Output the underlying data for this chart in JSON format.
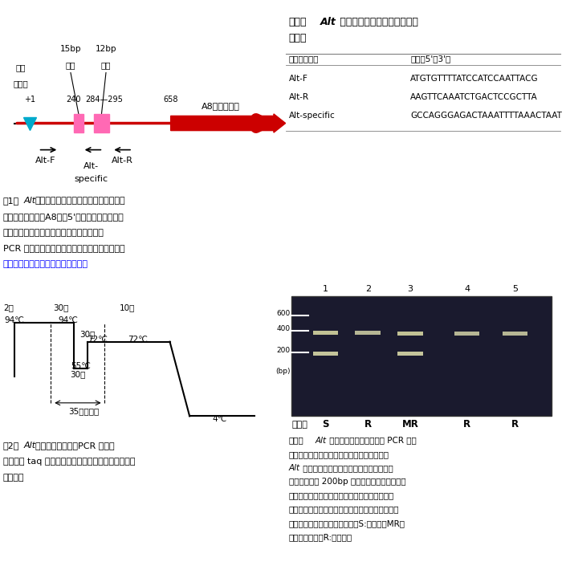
{
  "fig1_title": "図1　Alt座乗領域中に存在する病害抵抗性遺伝\n子様の翻訳領域（A8）の5'側非翻訳領域におい\nて、特異的に認められる挿入・欠失多型。\nPCR で多型を検出するためのプライマーを設計\nした位置を矢印で模式的に示した。",
  "table1_title": "表１　Alt を検出するためのプライマー\nセット",
  "table1_headers": [
    "プライマー名",
    "配列（5'－3'）"
  ],
  "table1_rows": [
    [
      "Alt-F",
      "ATGTGTTTTATCCATCCAATTACG"
    ],
    [
      "Alt-R",
      "AAGTTCAAATCTGACTCCGCTTA"
    ],
    [
      "Alt-specific",
      "GCCAGGGAGACTAAATTTTAAACTAAT"
    ]
  ],
  "fig2_title": "図2　Alt を検出するためのPCR 条件。\n使用する taq 酵素に応じて適宜、条件の改変を行う\nと良い。",
  "fig3_caption": "図３　Alt 特有の多型から得られた PCR 増幅\n産物のアガロースゲル電気泳動による検出。\nAlt を持つ罹病性品種のみで得られる増幅産\n物のバンドが 200bp 付近に認められる。１：\n「スターキングデリシャス」、２：「紅玉」、\n３：「ゴールデンデリシャス」、４：「国光」、\n５：「ウースターペアメン」。S:罹病性、MR：\n中程度抵抗性、R:抵抗性。",
  "background_color": "#ffffff"
}
